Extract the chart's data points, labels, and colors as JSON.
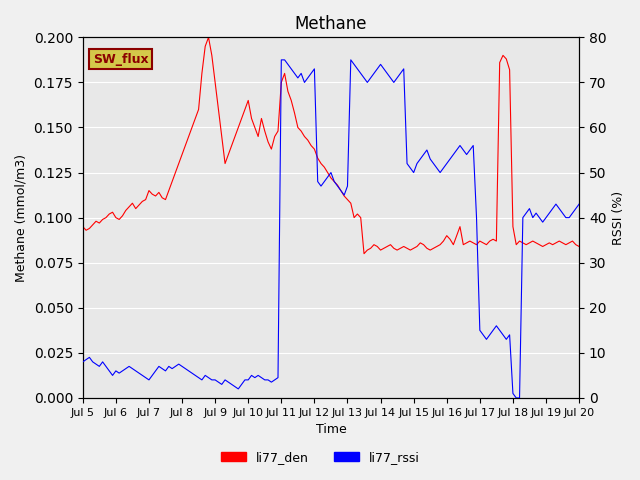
{
  "title": "Methane",
  "ylabel_left": "Methane (mmol/m3)",
  "ylabel_right": "RSSI (%)",
  "xlabel": "Time",
  "ylim_left": [
    0.0,
    0.2
  ],
  "ylim_right": [
    0,
    80
  ],
  "background_color": "#e8e8e8",
  "figure_background": "#f0f0f0",
  "annotation_text": "SW_flux",
  "annotation_bg": "#d4c84a",
  "annotation_fg": "#8b0000",
  "legend": [
    "li77_den",
    "li77_rssi"
  ],
  "line_colors": [
    "red",
    "blue"
  ],
  "xtick_labels": [
    "Jul 5",
    "Jul 6",
    "Jul 7",
    "Jul 8",
    "Jul 9",
    "Jul 10",
    "Jul 11",
    "Jul 12",
    "Jul 13",
    "Jul 14",
    "Jul 15",
    "Jul 16",
    "Jul 17",
    "Jul 18",
    "Jul 19",
    "Jul 20"
  ],
  "red_x": [
    0,
    0.1,
    0.2,
    0.3,
    0.4,
    0.5,
    0.6,
    0.7,
    0.8,
    0.9,
    1.0,
    1.1,
    1.2,
    1.3,
    1.4,
    1.5,
    1.6,
    1.7,
    1.8,
    1.9,
    2.0,
    2.1,
    2.2,
    2.3,
    2.4,
    2.5,
    2.6,
    2.7,
    2.8,
    2.9,
    3.0,
    3.1,
    3.2,
    3.3,
    3.4,
    3.5,
    3.6,
    3.7,
    3.8,
    3.9,
    4.0,
    4.1,
    4.2,
    4.3,
    4.4,
    4.5,
    4.6,
    4.7,
    4.8,
    4.9,
    5.0,
    5.1,
    5.2,
    5.3,
    5.4,
    5.5,
    5.6,
    5.7,
    5.8,
    5.9,
    6.0,
    6.1,
    6.2,
    6.3,
    6.4,
    6.5,
    6.6,
    6.7,
    6.8,
    6.9,
    7.0,
    7.1,
    7.2,
    7.3,
    7.4,
    7.5,
    7.6,
    7.7,
    7.8,
    7.9,
    8.0,
    8.1,
    8.2,
    8.3,
    8.4,
    8.5,
    8.6,
    8.7,
    8.8,
    8.9,
    9.0,
    9.1,
    9.2,
    9.3,
    9.4,
    9.5,
    9.6,
    9.7,
    9.8,
    9.9,
    10.0,
    10.1,
    10.2,
    10.3,
    10.4,
    10.5,
    10.6,
    10.7,
    10.8,
    10.9,
    11.0,
    11.1,
    11.2,
    11.3,
    11.4,
    11.5,
    11.6,
    11.7,
    11.8,
    11.9,
    12.0,
    12.1,
    12.2,
    12.3,
    12.4,
    12.5,
    12.6,
    12.7,
    12.8,
    12.9,
    13.0,
    13.1,
    13.2,
    13.3,
    13.4,
    13.5,
    13.6,
    13.7,
    13.8,
    13.9,
    14.0,
    14.1,
    14.2,
    14.3,
    14.4,
    14.5,
    14.6,
    14.7,
    14.8,
    14.9,
    15.0
  ],
  "red_y": [
    0.095,
    0.093,
    0.094,
    0.096,
    0.098,
    0.097,
    0.099,
    0.1,
    0.102,
    0.103,
    0.1,
    0.099,
    0.101,
    0.104,
    0.106,
    0.108,
    0.105,
    0.107,
    0.109,
    0.11,
    0.115,
    0.113,
    0.112,
    0.114,
    0.111,
    0.11,
    0.115,
    0.12,
    0.125,
    0.13,
    0.135,
    0.14,
    0.145,
    0.15,
    0.155,
    0.16,
    0.18,
    0.195,
    0.2,
    0.19,
    0.175,
    0.16,
    0.145,
    0.13,
    0.135,
    0.14,
    0.145,
    0.15,
    0.155,
    0.16,
    0.165,
    0.155,
    0.15,
    0.145,
    0.155,
    0.148,
    0.142,
    0.138,
    0.145,
    0.148,
    0.175,
    0.18,
    0.17,
    0.165,
    0.158,
    0.15,
    0.148,
    0.145,
    0.143,
    0.14,
    0.138,
    0.133,
    0.13,
    0.128,
    0.125,
    0.122,
    0.12,
    0.118,
    0.115,
    0.112,
    0.11,
    0.108,
    0.1,
    0.102,
    0.1,
    0.08,
    0.082,
    0.083,
    0.085,
    0.084,
    0.082,
    0.083,
    0.084,
    0.085,
    0.083,
    0.082,
    0.083,
    0.084,
    0.083,
    0.082,
    0.083,
    0.084,
    0.086,
    0.085,
    0.083,
    0.082,
    0.083,
    0.084,
    0.085,
    0.087,
    0.09,
    0.088,
    0.085,
    0.09,
    0.095,
    0.085,
    0.086,
    0.087,
    0.086,
    0.085,
    0.087,
    0.086,
    0.085,
    0.087,
    0.088,
    0.087,
    0.186,
    0.19,
    0.188,
    0.182,
    0.095,
    0.085,
    0.087,
    0.086,
    0.085,
    0.086,
    0.087,
    0.086,
    0.085,
    0.084,
    0.085,
    0.086,
    0.085,
    0.086,
    0.087,
    0.086,
    0.085,
    0.086,
    0.087,
    0.085,
    0.084
  ],
  "blue_x": [
    0,
    0.1,
    0.2,
    0.3,
    0.4,
    0.5,
    0.6,
    0.7,
    0.8,
    0.9,
    1.0,
    1.1,
    1.2,
    1.3,
    1.4,
    1.5,
    1.6,
    1.7,
    1.8,
    1.9,
    2.0,
    2.1,
    2.2,
    2.3,
    2.4,
    2.5,
    2.6,
    2.7,
    2.8,
    2.9,
    3.0,
    3.1,
    3.2,
    3.3,
    3.4,
    3.5,
    3.6,
    3.7,
    3.8,
    3.9,
    4.0,
    4.1,
    4.2,
    4.3,
    4.4,
    4.5,
    4.6,
    4.7,
    4.8,
    4.9,
    5.0,
    5.1,
    5.2,
    5.3,
    5.4,
    5.5,
    5.6,
    5.7,
    5.8,
    5.9,
    6.0,
    6.1,
    6.2,
    6.3,
    6.4,
    6.5,
    6.6,
    6.7,
    6.8,
    6.9,
    7.0,
    7.1,
    7.2,
    7.3,
    7.4,
    7.5,
    7.6,
    7.7,
    7.8,
    7.9,
    8.0,
    8.1,
    8.2,
    8.3,
    8.4,
    8.5,
    8.6,
    8.7,
    8.8,
    8.9,
    9.0,
    9.1,
    9.2,
    9.3,
    9.4,
    9.5,
    9.6,
    9.7,
    9.8,
    9.9,
    10.0,
    10.1,
    10.2,
    10.3,
    10.4,
    10.5,
    10.6,
    10.7,
    10.8,
    10.9,
    11.0,
    11.1,
    11.2,
    11.3,
    11.4,
    11.5,
    11.6,
    11.7,
    11.8,
    11.9,
    12.0,
    12.1,
    12.2,
    12.3,
    12.4,
    12.5,
    12.6,
    12.7,
    12.8,
    12.9,
    13.0,
    13.1,
    13.2,
    13.3,
    13.4,
    13.5,
    13.6,
    13.7,
    13.8,
    13.9,
    14.0,
    14.1,
    14.2,
    14.3,
    14.4,
    14.5,
    14.6,
    14.7,
    14.8,
    14.9,
    15.0
  ],
  "blue_y_rssi": [
    8,
    8.5,
    9,
    8,
    7.5,
    7,
    8,
    7,
    6,
    5,
    6,
    5.5,
    6,
    6.5,
    7,
    6.5,
    6,
    5.5,
    5,
    4.5,
    4,
    5,
    6,
    7,
    6.5,
    6,
    7,
    6.5,
    7,
    7.5,
    7,
    6.5,
    6,
    5.5,
    5,
    4.5,
    4,
    5,
    4.5,
    4,
    4,
    3.5,
    3,
    4,
    3.5,
    3,
    2.5,
    2,
    3,
    4,
    4,
    5,
    4.5,
    5,
    4.5,
    4,
    4,
    3.5,
    4,
    4.5,
    75,
    75,
    74,
    73,
    72,
    71,
    72,
    70,
    71,
    72,
    73,
    48,
    47,
    48,
    49,
    50,
    48,
    47,
    46,
    45,
    47,
    75,
    74,
    73,
    72,
    71,
    70,
    71,
    72,
    73,
    74,
    73,
    72,
    71,
    70,
    71,
    72,
    73,
    52,
    51,
    50,
    52,
    53,
    54,
    55,
    53,
    52,
    51,
    50,
    51,
    52,
    53,
    54,
    55,
    56,
    55,
    54,
    55,
    56,
    40,
    15,
    14,
    13,
    14,
    15,
    16,
    15,
    14,
    13,
    14,
    1,
    0,
    0,
    40,
    41,
    42,
    40,
    41,
    40,
    39,
    40,
    41,
    42,
    43,
    42,
    41,
    40,
    40,
    41,
    42,
    43
  ],
  "xlim": [
    0,
    15
  ],
  "xtick_positions": [
    0,
    1,
    2,
    3,
    4,
    5,
    6,
    7,
    8,
    9,
    10,
    11,
    12,
    13,
    14,
    15
  ]
}
